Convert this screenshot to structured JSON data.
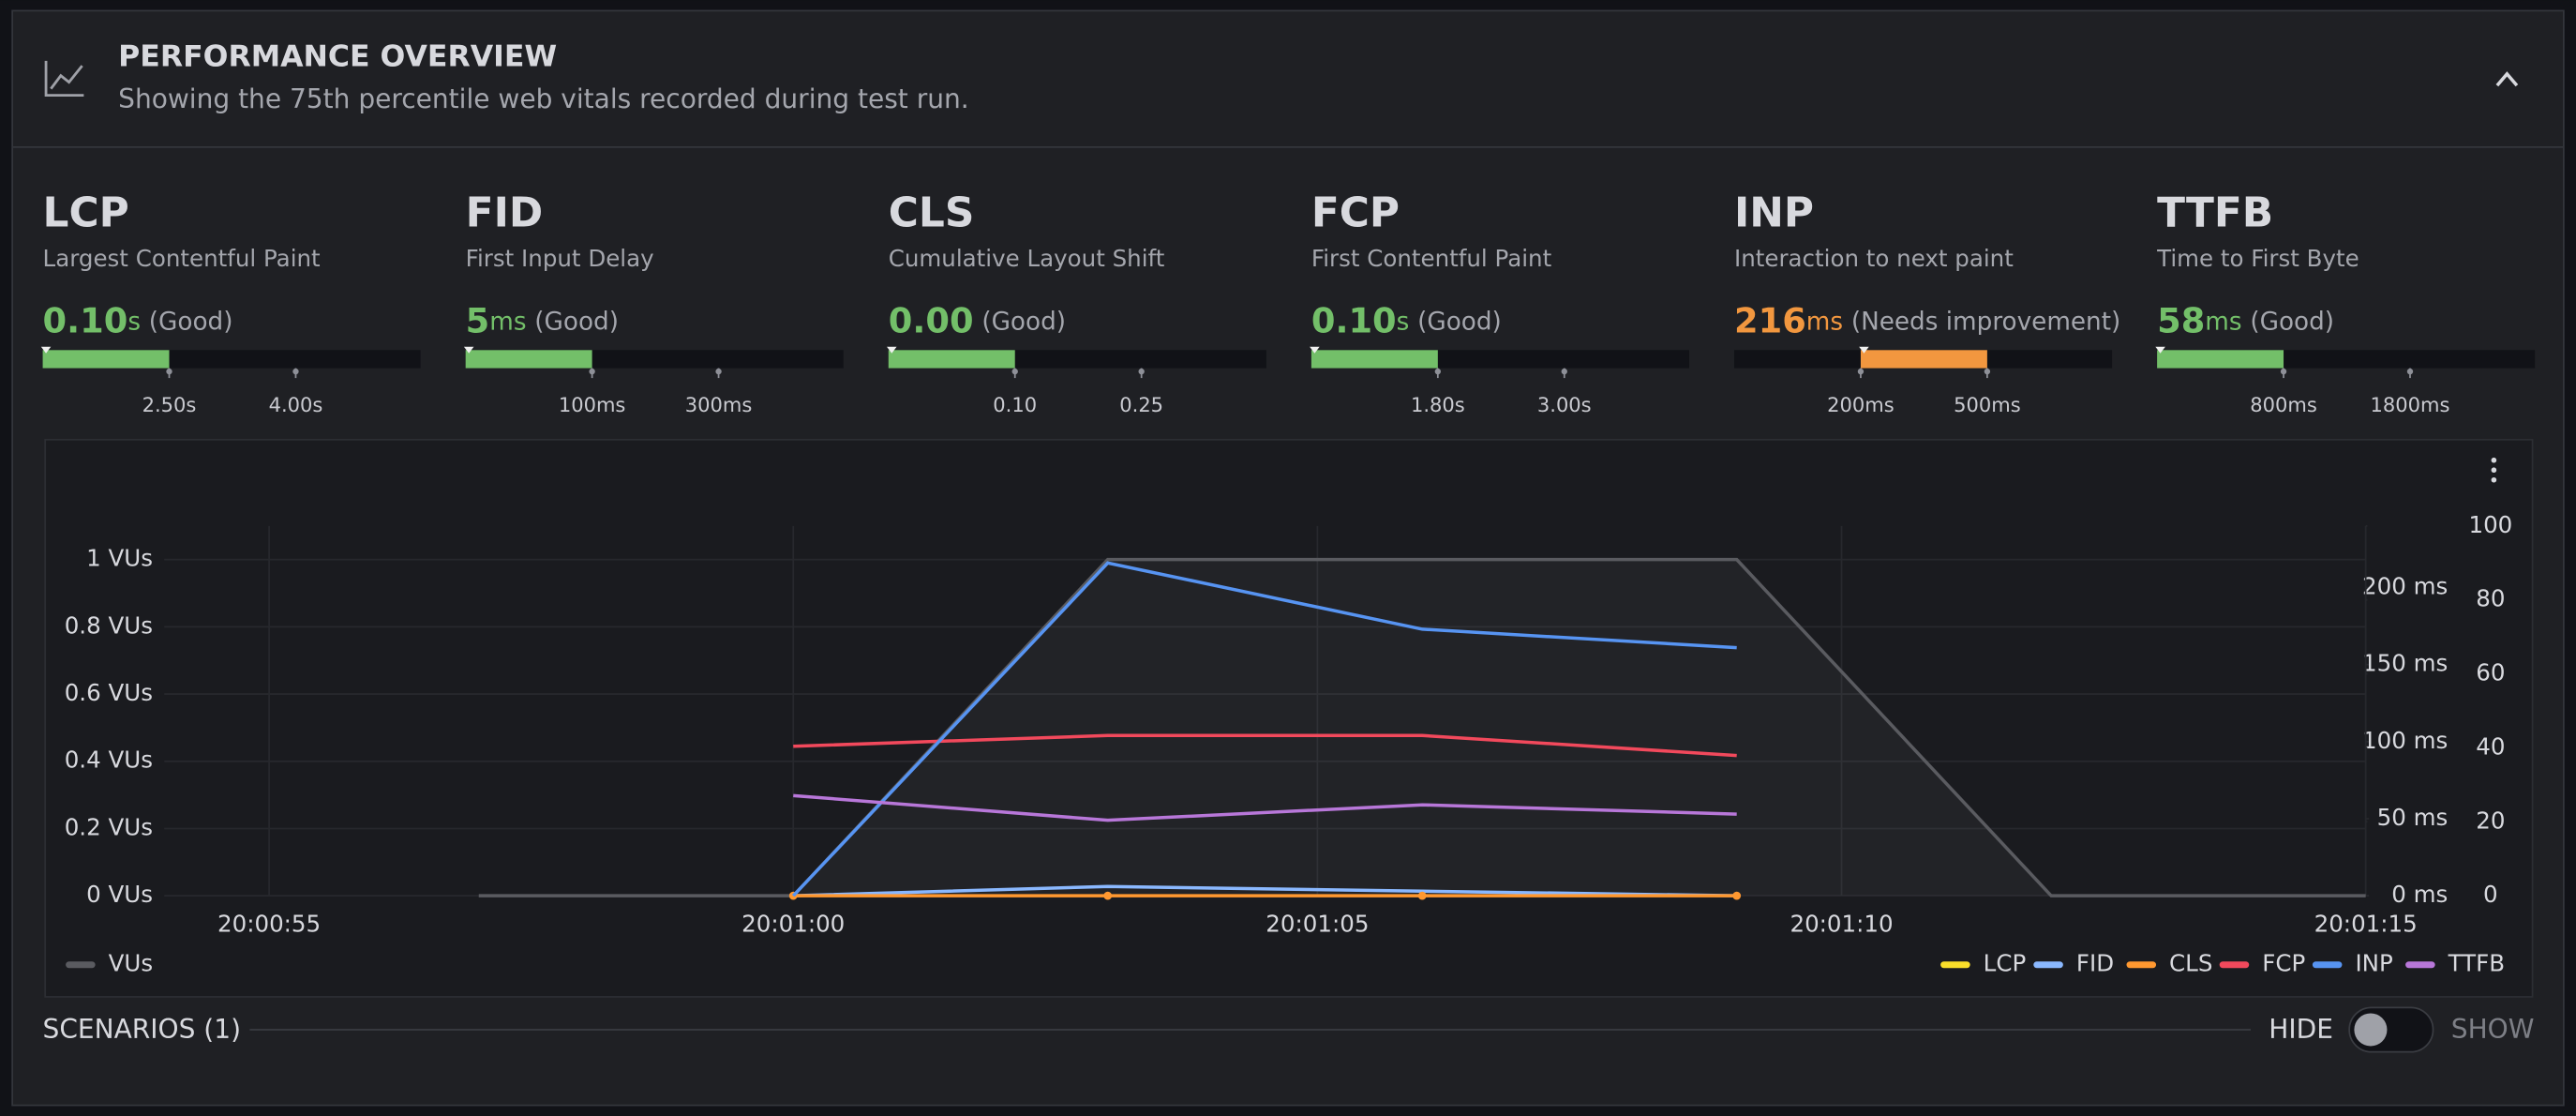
{
  "header": {
    "title": "PERFORMANCE OVERVIEW",
    "subtitle": "Showing the 75th percentile web vitals recorded during test run."
  },
  "metrics": [
    {
      "abbr": "LCP",
      "name": "Largest Contentful Paint",
      "value": "0.10",
      "unit": "s",
      "status": "(Good)",
      "color": "#73bf69",
      "thresholds": [
        "2.50s",
        "4.00s"
      ]
    },
    {
      "abbr": "FID",
      "name": "First Input Delay",
      "value": "5",
      "unit": "ms",
      "status": "(Good)",
      "color": "#73bf69",
      "thresholds": [
        "100ms",
        "300ms"
      ]
    },
    {
      "abbr": "CLS",
      "name": "Cumulative Layout Shift",
      "value": "0.00",
      "unit": "",
      "status": "(Good)",
      "color": "#73bf69",
      "thresholds": [
        "0.10",
        "0.25"
      ]
    },
    {
      "abbr": "FCP",
      "name": "First Contentful Paint",
      "value": "0.10",
      "unit": "s",
      "status": "(Good)",
      "color": "#73bf69",
      "thresholds": [
        "1.80s",
        "3.00s"
      ]
    },
    {
      "abbr": "INP",
      "name": "Interaction to next paint",
      "value": "216",
      "unit": "ms",
      "status": "(Needs improvement)",
      "color": "#f2973f",
      "thresholds": [
        "200ms",
        "500ms"
      ]
    },
    {
      "abbr": "TTFB",
      "name": "Time to First Byte",
      "value": "58",
      "unit": "ms",
      "status": "(Good)",
      "color": "#73bf69",
      "thresholds": [
        "800ms",
        "1800ms"
      ]
    }
  ],
  "chart_data": {
    "type": "line",
    "grid": true,
    "x": [
      72057,
      72060,
      72063,
      72066,
      72069,
      72072,
      72075
    ],
    "xlim": [
      72054,
      72075
    ],
    "xticks": [
      {
        "value": 72055,
        "label": "20:00:55"
      },
      {
        "value": 72060,
        "label": "20:01:00"
      },
      {
        "value": 72065,
        "label": "20:01:05"
      },
      {
        "value": 72070,
        "label": "20:01:10"
      },
      {
        "value": 72075,
        "label": "20:01:15"
      }
    ],
    "ylim": [
      0,
      1.1
    ],
    "yticks": [
      {
        "value": 0,
        "label": "0 VUs"
      },
      {
        "value": 0.2,
        "label": "0.2 VUs"
      },
      {
        "value": 0.4,
        "label": "0.4 VUs"
      },
      {
        "value": 0.6,
        "label": "0.6 VUs"
      },
      {
        "value": 0.8,
        "label": "0.8 VUs"
      },
      {
        "value": 1,
        "label": "1 VUs"
      }
    ],
    "y2lim": [
      0,
      240
    ],
    "y2ticks": [
      {
        "value": 0,
        "label": "0 ms"
      },
      {
        "value": 50,
        "label": "50 ms"
      },
      {
        "value": 100,
        "label": "100 ms"
      },
      {
        "value": 150,
        "label": "150 ms"
      },
      {
        "value": 200,
        "label": "200 ms"
      }
    ],
    "y3lim": [
      0,
      100
    ],
    "y3ticks": [
      0,
      20,
      40,
      60,
      80,
      100
    ],
    "series": [
      {
        "name": "VUs",
        "color": "#5a5b60",
        "area": true,
        "values": [
          0,
          0,
          1,
          1,
          1,
          0,
          0
        ]
      },
      {
        "name": "LCP",
        "color": "#fade2a",
        "axis": "y2",
        "values": [
          null,
          null,
          null,
          null,
          null,
          null,
          null
        ]
      },
      {
        "name": "FID",
        "color": "#8ab8ff",
        "axis": "y2",
        "values": [
          null,
          0,
          6,
          3,
          0,
          null,
          null
        ]
      },
      {
        "name": "CLS",
        "color": "#ff9830",
        "axis": "y3",
        "points": true,
        "values": [
          null,
          0,
          0,
          0,
          0,
          null,
          null
        ]
      },
      {
        "name": "FCP",
        "color": "#f2495c",
        "axis": "y2",
        "values": [
          null,
          97,
          104,
          104,
          91,
          null,
          null
        ]
      },
      {
        "name": "INP",
        "color": "#5794f2",
        "axis": "y2",
        "values": [
          null,
          0,
          216,
          173,
          161,
          null,
          null
        ]
      },
      {
        "name": "TTFB",
        "color": "#b877d9",
        "axis": "y2",
        "values": [
          null,
          65,
          49,
          59,
          53,
          null,
          null
        ]
      }
    ]
  },
  "scenarios": {
    "label": "SCENARIOS (1)",
    "hide": "HIDE",
    "show": "SHOW"
  }
}
